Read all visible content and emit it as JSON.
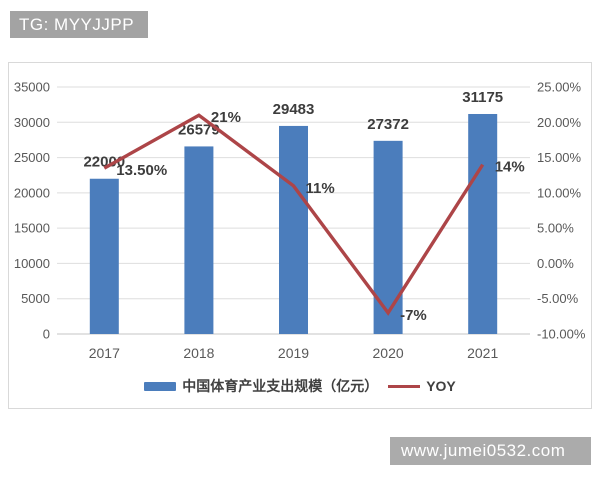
{
  "header": {
    "badge_text": "TG: MYYJJPP"
  },
  "footer": {
    "watermark_text": "www.jumei0532.com"
  },
  "colors": {
    "bar": "#4b7dbc",
    "line": "#ad4548",
    "badge_bg": "#a3a3a3",
    "watermark_bg": "#ababab",
    "grid": "#dedede",
    "axis_line": "#c6c6c6",
    "axis_text": "#595959",
    "label_text": "#3d3d3d"
  },
  "chart_data": {
    "type": "combo-bar-line",
    "categories": [
      "2017",
      "2018",
      "2019",
      "2020",
      "2021"
    ],
    "series": [
      {
        "name": "中国体育产业支出规模（亿元）",
        "type": "bar",
        "axis": "left",
        "values": [
          22000,
          26579,
          29483,
          27372,
          31175
        ],
        "labels": [
          "22000",
          "26579",
          "29483",
          "27372",
          "31175"
        ],
        "color": "#4b7dbc"
      },
      {
        "name": "YOY",
        "type": "line",
        "axis": "right",
        "values": [
          13.5,
          21,
          11,
          -7,
          14
        ],
        "labels": [
          "13.50%",
          "21%",
          "11%",
          "-7%",
          "14%"
        ],
        "color": "#ad4548"
      }
    ],
    "left_axis": {
      "min": 0,
      "max": 35000,
      "step": 5000,
      "ticks": [
        "35000",
        "30000",
        "25000",
        "20000",
        "15000",
        "10000",
        "5000",
        "0"
      ]
    },
    "right_axis": {
      "min": -10,
      "max": 25,
      "step": 5,
      "ticks": [
        "25.00%",
        "20.00%",
        "15.00%",
        "10.00%",
        "5.00%",
        "0.00%",
        "-5.00%",
        "-10.00%"
      ]
    },
    "grid": true,
    "legend_position": "bottom"
  }
}
